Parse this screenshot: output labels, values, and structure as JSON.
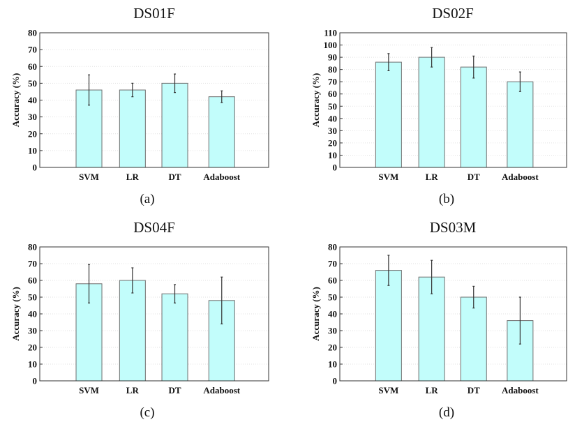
{
  "colors": {
    "bar": "#c2fdfb",
    "bar_edge": "#6e6e6e",
    "error": "#333333"
  },
  "chart_data": [
    {
      "type": "bar",
      "title": "DS01F",
      "caption": "(a)",
      "ylabel": "Accuracy (%)",
      "categories": [
        "SVM",
        "LR",
        "DT",
        "Adaboost"
      ],
      "values": [
        46,
        46,
        50,
        42
      ],
      "error": [
        9,
        4,
        5.5,
        3.5
      ],
      "ylim": [
        0,
        80
      ],
      "yticks": [
        0,
        10,
        20,
        30,
        40,
        50,
        60,
        70,
        80
      ],
      "grid": true
    },
    {
      "type": "bar",
      "title": "DS02F",
      "caption": "(b)",
      "ylabel": "Accuracy (%)",
      "categories": [
        "SVM",
        "LR",
        "DT",
        "Adaboost"
      ],
      "values": [
        86,
        90,
        82,
        70
      ],
      "error": [
        7,
        8,
        9,
        8
      ],
      "ylim": [
        0,
        110
      ],
      "yticks": [
        0,
        10,
        20,
        30,
        40,
        50,
        60,
        70,
        80,
        90,
        100,
        110
      ],
      "grid": true
    },
    {
      "type": "bar",
      "title": "DS04F",
      "caption": "(c)",
      "ylabel": "Accuracy (%)",
      "categories": [
        "SVM",
        "LR",
        "DT",
        "Adaboost"
      ],
      "values": [
        58,
        60,
        52,
        48
      ],
      "error": [
        11.5,
        7.5,
        5.5,
        14
      ],
      "ylim": [
        0,
        80
      ],
      "yticks": [
        0,
        10,
        20,
        30,
        40,
        50,
        60,
        70,
        80
      ],
      "grid": true
    },
    {
      "type": "bar",
      "title": "DS03M",
      "caption": "(d)",
      "ylabel": "Accuracy (%)",
      "categories": [
        "SVM",
        "LR",
        "DT",
        "Adaboost"
      ],
      "values": [
        66,
        62,
        50,
        36
      ],
      "error": [
        9,
        10,
        6.5,
        14
      ],
      "ylim": [
        0,
        80
      ],
      "yticks": [
        0,
        10,
        20,
        30,
        40,
        50,
        60,
        70,
        80
      ],
      "grid": true
    }
  ]
}
